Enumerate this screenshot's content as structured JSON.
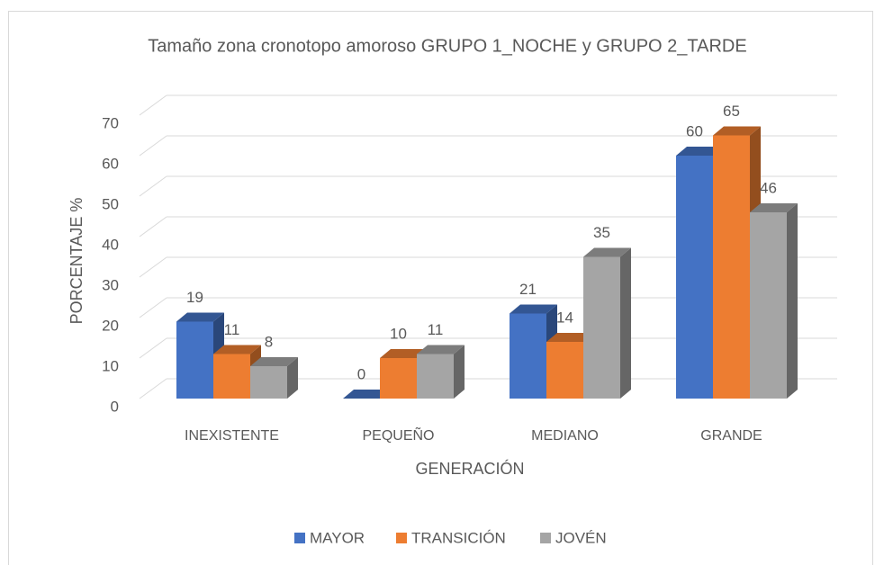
{
  "chart_data": {
    "type": "bar3d",
    "title": "Tamaño zona cronotopo amoroso GRUPO 1_NOCHE y GRUPO 2_TARDE",
    "x_label": "GENERACIÓN",
    "y_label": "PORCENTAJE %",
    "categories": [
      "INEXISTENTE",
      "PEQUEÑO",
      "MEDIANO",
      "GRANDE"
    ],
    "series": [
      {
        "name": "MAYOR",
        "color": "#4472c4",
        "values": [
          19,
          0,
          21,
          60
        ]
      },
      {
        "name": "TRANSICIÓN",
        "color": "#ed7d31",
        "values": [
          11,
          10,
          14,
          65
        ]
      },
      {
        "name": "JOVÉN",
        "color": "#a5a5a5",
        "values": [
          8,
          11,
          35,
          46
        ]
      }
    ],
    "ylim": [
      0,
      70
    ],
    "yticks": [
      0,
      10,
      20,
      30,
      40,
      50,
      60,
      70
    ],
    "grid": true,
    "legend": "bottom"
  }
}
